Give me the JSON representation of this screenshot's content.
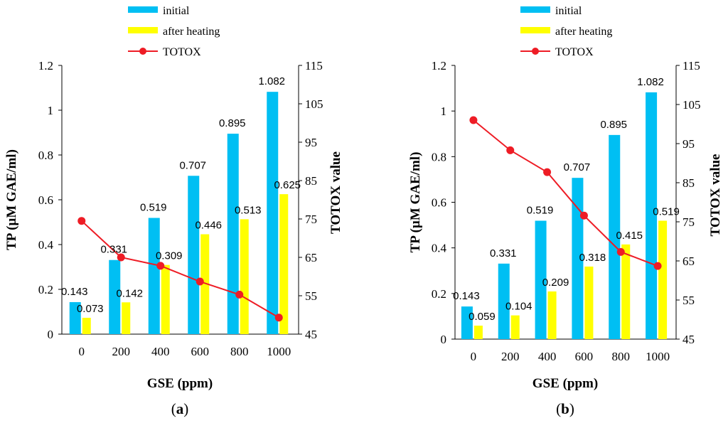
{
  "colors": {
    "initial": "#00BFF3",
    "after_heating": "#FFFF00",
    "totox": "#EE1C25"
  },
  "chart_data": [
    {
      "type": "bar",
      "panel_label": "a",
      "categories": [
        "0",
        "200",
        "400",
        "600",
        "800",
        "1000"
      ],
      "xlabel": "GSE (ppm)",
      "ylabel": "TP (µM GAE/ml)",
      "y2label": "TOTOX value",
      "ylim": [
        0,
        1.2
      ],
      "yticks": [
        "0",
        "0.2",
        "0.4",
        "0.6",
        "0.8",
        "1",
        "1.2"
      ],
      "y2lim": [
        45,
        115
      ],
      "y2ticks": [
        "45",
        "55",
        "65",
        "75",
        "85",
        "95",
        "105",
        "115"
      ],
      "legend": [
        "initial",
        "after heating",
        "TOTOX"
      ],
      "series": [
        {
          "name": "initial",
          "values": [
            0.143,
            0.331,
            0.519,
            0.707,
            0.895,
            1.082
          ],
          "labels": [
            "0.143",
            "0.331",
            "0.519",
            "0.707",
            "0.895",
            "1.082"
          ]
        },
        {
          "name": "after heating",
          "values": [
            0.073,
            0.142,
            0.309,
            0.446,
            0.513,
            0.625
          ],
          "labels": [
            "0.073",
            "0.142",
            "0.309",
            "0.446",
            "0.513",
            "0.625"
          ]
        },
        {
          "name": "TOTOX",
          "axis": "secondary",
          "values": [
            74.5,
            65.0,
            62.8,
            58.7,
            55.3,
            49.3
          ]
        }
      ]
    },
    {
      "type": "bar",
      "panel_label": "b",
      "categories": [
        "0",
        "200",
        "400",
        "600",
        "800",
        "1000"
      ],
      "xlabel": "GSE (ppm)",
      "ylabel": "TP (µM GAE/ml)",
      "y2label": "TOTOX value",
      "ylim": [
        0,
        1.2
      ],
      "yticks": [
        "0",
        "0.2",
        "0.4",
        "0.6",
        "0.8",
        "1",
        "1.2"
      ],
      "y2lim": [
        45,
        115
      ],
      "y2ticks": [
        "45",
        "55",
        "65",
        "75",
        "85",
        "95",
        "105",
        "115"
      ],
      "legend": [
        "initial",
        "after heating",
        "TOTOX"
      ],
      "series": [
        {
          "name": "initial",
          "values": [
            0.143,
            0.331,
            0.519,
            0.707,
            0.895,
            1.082
          ],
          "labels": [
            "0.143",
            "0.331",
            "0.519",
            "0.707",
            "0.895",
            "1.082"
          ]
        },
        {
          "name": "after heating",
          "values": [
            0.059,
            0.104,
            0.209,
            0.318,
            0.415,
            0.519
          ],
          "labels": [
            "0.059",
            "0.104",
            "0.209",
            "0.318",
            "0.415",
            "0.519"
          ]
        },
        {
          "name": "TOTOX",
          "axis": "secondary",
          "values": [
            101.0,
            93.3,
            87.7,
            76.6,
            67.3,
            63.7
          ]
        }
      ]
    }
  ]
}
